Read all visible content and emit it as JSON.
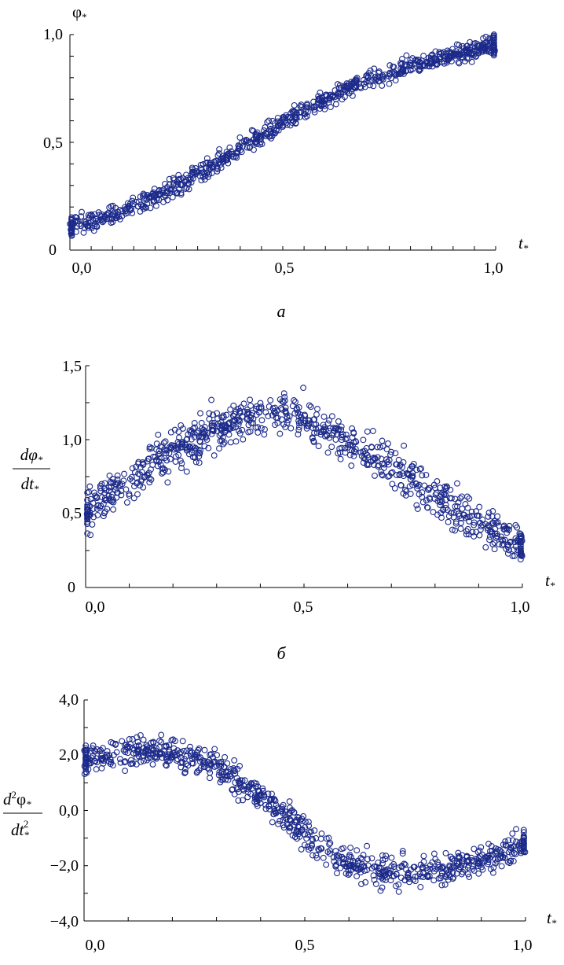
{
  "colors": {
    "marker": "#1c2a8a",
    "axis": "#000000"
  },
  "panels": [
    {
      "caption": "а",
      "ylabel": {
        "symbol": "φ",
        "sub": "*"
      },
      "xlabel": {
        "symbol": "t",
        "sub": "*"
      },
      "xticks": [
        "0,0",
        "0,5",
        "1,0"
      ],
      "yticks": [
        "0",
        "0,5",
        "1,0"
      ]
    },
    {
      "caption": "б",
      "ylabel": {
        "num": "dφ",
        "num_sub": "*",
        "den": "dt",
        "den_sub": "*"
      },
      "xlabel": {
        "symbol": "t",
        "sub": "*"
      },
      "xticks": [
        "0,0",
        "0,5",
        "1,0"
      ],
      "yticks": [
        "0",
        "0,5",
        "1,0",
        "1,5"
      ]
    },
    {
      "caption": "",
      "ylabel": {
        "num": "d",
        "num_sup": "2",
        "num2": "φ",
        "num_sub": "*",
        "den": "dt",
        "den_sub": "*",
        "den_sup": "2"
      },
      "xlabel": {
        "symbol": "t",
        "sub": "*"
      },
      "xticks": [
        "0,0",
        "0,5",
        "1,0"
      ],
      "yticks": [
        "−4,0",
        "−2,0",
        "0,0",
        "2,0",
        "4,0"
      ]
    }
  ],
  "chart_data": [
    {
      "type": "scatter",
      "title": "",
      "xlabel": "t*",
      "ylabel": "φ*",
      "xlim": [
        0,
        1
      ],
      "ylim": [
        0,
        1
      ],
      "marker": "open-circle",
      "approx_center": {
        "x": [
          0,
          0.1,
          0.2,
          0.3,
          0.4,
          0.5,
          0.6,
          0.7,
          0.8,
          0.9,
          1.0
        ],
        "y": [
          0.11,
          0.16,
          0.24,
          0.35,
          0.47,
          0.59,
          0.7,
          0.79,
          0.86,
          0.91,
          0.95
        ]
      },
      "approx_spread": 0.05
    },
    {
      "type": "scatter",
      "title": "",
      "xlabel": "t*",
      "ylabel": "dφ*/dt*",
      "xlim": [
        0,
        1
      ],
      "ylim": [
        0,
        1.5
      ],
      "marker": "open-circle",
      "approx_center": {
        "x": [
          0,
          0.1,
          0.2,
          0.3,
          0.4,
          0.5,
          0.6,
          0.7,
          0.8,
          0.9,
          1.0
        ],
        "y": [
          0.5,
          0.72,
          0.92,
          1.08,
          1.18,
          1.15,
          0.98,
          0.82,
          0.62,
          0.44,
          0.28
        ]
      },
      "approx_spread": 0.1
    },
    {
      "type": "scatter",
      "title": "",
      "xlabel": "t*",
      "ylabel": "d²φ*/dt*²",
      "xlim": [
        0,
        1
      ],
      "ylim": [
        -4,
        4
      ],
      "marker": "open-circle",
      "approx_center": {
        "x": [
          0,
          0.1,
          0.2,
          0.3,
          0.4,
          0.5,
          0.6,
          0.7,
          0.8,
          0.9,
          1.0
        ],
        "y": [
          1.9,
          2.1,
          2.1,
          1.6,
          0.6,
          -0.9,
          -1.9,
          -2.3,
          -2.2,
          -1.8,
          -1.2
        ]
      },
      "approx_spread": 0.4
    }
  ]
}
